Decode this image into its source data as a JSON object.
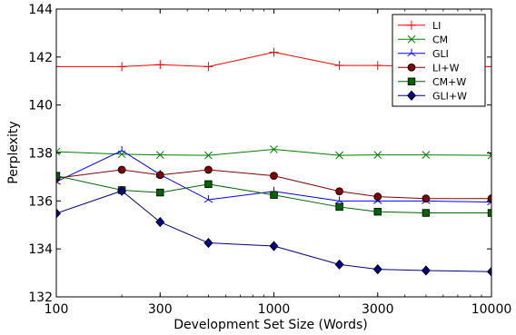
{
  "chart_data": {
    "type": "line",
    "title": "",
    "xlabel": "Development Set Size (Words)",
    "ylabel": "Perplexity",
    "xscale": "log",
    "xlim": [
      100,
      10000
    ],
    "ylim": [
      132,
      144
    ],
    "xticks": [
      100,
      300,
      1000,
      3000,
      10000
    ],
    "xtick_labels": [
      "100",
      "300",
      "1000",
      "3000",
      "10000"
    ],
    "yticks": [
      132,
      134,
      136,
      138,
      140,
      142,
      144
    ],
    "ytick_labels": [
      "132",
      "134",
      "136",
      "138",
      "140",
      "142",
      "144"
    ],
    "grid": false,
    "legend_position": "top-right",
    "x": [
      100,
      200,
      300,
      500,
      1000,
      2000,
      3000,
      5000,
      10000
    ],
    "series": [
      {
        "name": "LI",
        "color": "#ff0000",
        "marker": "plus",
        "values": [
          141.6,
          141.6,
          141.68,
          141.6,
          142.2,
          141.65,
          141.65,
          141.6,
          141.6
        ]
      },
      {
        "name": "CM",
        "color": "#008000",
        "marker": "x",
        "values": [
          138.05,
          137.95,
          137.92,
          137.9,
          138.15,
          137.9,
          137.92,
          137.92,
          137.9
        ]
      },
      {
        "name": "GLI",
        "color": "#0000ff",
        "marker": "tri_up",
        "values": [
          136.8,
          138.1,
          137.1,
          136.05,
          136.4,
          136.0,
          136.0,
          136.0,
          135.95
        ]
      },
      {
        "name": "LI+W",
        "color": "#800000",
        "marker": "circle",
        "values": [
          136.95,
          137.3,
          137.08,
          137.3,
          137.05,
          136.4,
          136.18,
          136.1,
          136.1
        ]
      },
      {
        "name": "CM+W",
        "color": "#006400",
        "marker": "square",
        "values": [
          137.05,
          136.45,
          136.35,
          136.7,
          136.25,
          135.75,
          135.55,
          135.5,
          135.5
        ]
      },
      {
        "name": "GLI+W",
        "color": "#000080",
        "marker": "diamond",
        "values": [
          135.48,
          136.42,
          135.12,
          134.25,
          134.12,
          133.35,
          133.15,
          133.1,
          133.05
        ]
      }
    ]
  }
}
